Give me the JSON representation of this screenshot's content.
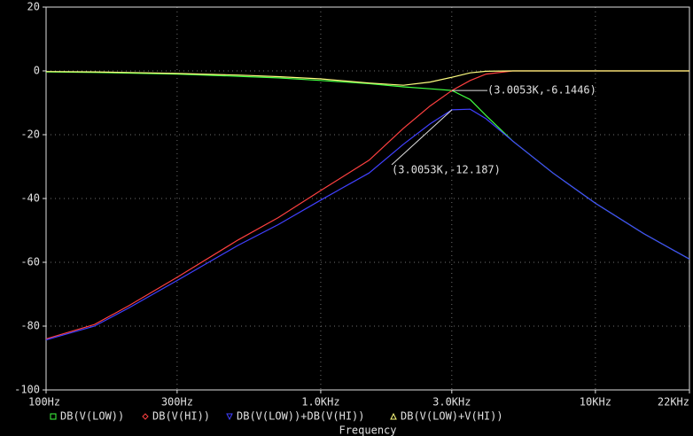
{
  "chart_data": {
    "type": "line",
    "xlabel": "Frequency",
    "log_x": true,
    "grid": true,
    "x": [
      100,
      150,
      200,
      300,
      500,
      700,
      1000,
      1500,
      2000,
      2500,
      3005.3,
      3500,
      4000,
      5000,
      7000,
      10000,
      15000,
      22000
    ],
    "xlim": [
      100,
      22000
    ],
    "xticks": [
      {
        "value": 100,
        "label": "100Hz"
      },
      {
        "value": 300,
        "label": "300Hz"
      },
      {
        "value": 1000,
        "label": "1.0KHz"
      },
      {
        "value": 3000,
        "label": "3.0KHz"
      },
      {
        "value": 10000,
        "label": "10KHz"
      },
      {
        "value": 22000,
        "label": "22KHz"
      }
    ],
    "ylim": [
      -100,
      20
    ],
    "yticks": [
      20,
      0,
      -20,
      -40,
      -60,
      -80,
      -100
    ],
    "series": [
      {
        "name": "DB(V(LOW))",
        "color": "#40ff40",
        "marker": "square",
        "values": [
          -0.3,
          -0.5,
          -0.7,
          -1,
          -1.7,
          -2.2,
          -3,
          -4,
          -5,
          -5.6,
          -6.1446,
          -9,
          -14,
          -22,
          -32,
          -41.5,
          -51,
          -59
        ]
      },
      {
        "name": "DB(V(HI))",
        "color": "#ff4040",
        "marker": "diamond",
        "values": [
          -84,
          -79.5,
          -73.6,
          -64.7,
          -53,
          -46,
          -37.5,
          -28,
          -18,
          -11,
          -6.1446,
          -3,
          -1,
          0,
          0,
          0,
          0,
          0
        ]
      },
      {
        "name": "DB(V(LOW))+DB(V(HI))",
        "color": "#4040ff",
        "marker": "triangle-down",
        "values": [
          -84.3,
          -80,
          -74.3,
          -65.7,
          -54.7,
          -48.2,
          -40.5,
          -32,
          -23,
          -16.6,
          -12.187,
          -12,
          -15,
          -22,
          -32,
          -41.5,
          -51,
          -59
        ]
      },
      {
        "name": "DB(V(LOW)+V(HI))",
        "color": "#ffff80",
        "marker": "triangle-up",
        "values": [
          -0.2,
          -0.3,
          -0.5,
          -0.8,
          -1.3,
          -1.8,
          -2.5,
          -3.8,
          -4.5,
          -3.5,
          -2,
          -0.6,
          -0.1,
          0,
          0,
          0,
          0,
          0
        ]
      }
    ],
    "annotations": [
      {
        "label": "(3.0053K,-6.1446)",
        "x": 3005.3,
        "y": -6.1446
      },
      {
        "label": "(3.0053K,-12.187)",
        "x": 3005.3,
        "y": -12.187
      }
    ]
  }
}
